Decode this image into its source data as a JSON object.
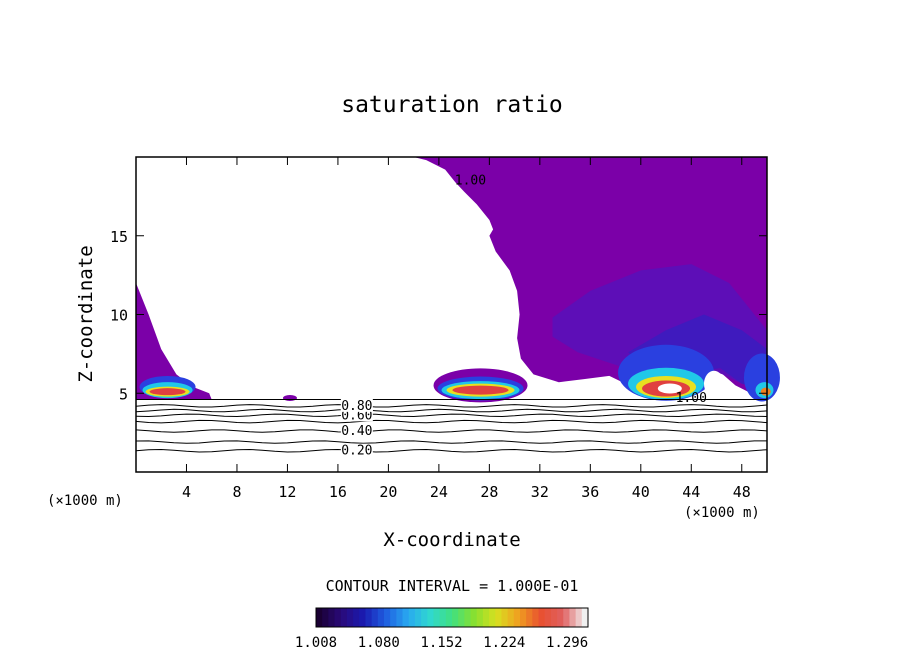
{
  "chart_data": {
    "type": "heatmap",
    "title": "saturation ratio",
    "xlabel": "X-coordinate",
    "ylabel": "Z-coordinate",
    "x_unit_label": "(×1000 m)",
    "x_unit_label_right": "(×1000 m)",
    "xlim": [
      0,
      50
    ],
    "ylim": [
      0,
      20
    ],
    "xticks": [
      4,
      8,
      12,
      16,
      20,
      24,
      28,
      32,
      36,
      40,
      44,
      48
    ],
    "yticks": [
      5,
      10,
      15
    ],
    "contour_interval_text": "CONTOUR INTERVAL = 1.000E-01",
    "contour_lines": [
      {
        "level": "0.20",
        "z": 1.35
      },
      {
        "level": "0.30",
        "z": 1.9
      },
      {
        "level": "0.40",
        "z": 2.6
      },
      {
        "level": "0.50",
        "z": 3.2
      },
      {
        "level": "0.60",
        "z": 3.6
      },
      {
        "level": "0.70",
        "z": 3.9
      },
      {
        "level": "0.80",
        "z": 4.2
      }
    ],
    "contour_labels": [
      {
        "text": "0.20",
        "x": 17.5,
        "z": 1.35
      },
      {
        "text": "0.40",
        "x": 17.5,
        "z": 2.6
      },
      {
        "text": "0.60",
        "x": 17.5,
        "z": 3.6
      },
      {
        "text": "0.80",
        "x": 17.5,
        "z": 4.2
      },
      {
        "text": "1.00",
        "x": 44.0,
        "z": 4.7
      },
      {
        "text": "1.00",
        "x": 26.5,
        "z": 18.5
      }
    ],
    "colorbar": {
      "min": 1.008,
      "max": 1.32,
      "tick_labels": [
        "1.008",
        "1.080",
        "1.152",
        "1.224",
        "1.296"
      ],
      "colors": [
        "#1a0033",
        "#2a0a7a",
        "#1a1ab0",
        "#1f5ee0",
        "#29a8f0",
        "#30d8d0",
        "#40e080",
        "#88e030",
        "#d8e020",
        "#f0a020",
        "#e85030",
        "#e06060",
        "#f0f0f0"
      ]
    },
    "colors": {
      "fill_low": "#7b00a8",
      "fill_mid": "#5a10b8",
      "fill_deep": "#3a1cc0",
      "fill_blue": "#2a40e0",
      "cyan": "#20c8e8",
      "green": "#40e060",
      "yellow": "#e8e020",
      "orange": "#f08020",
      "red": "#e04040"
    }
  }
}
